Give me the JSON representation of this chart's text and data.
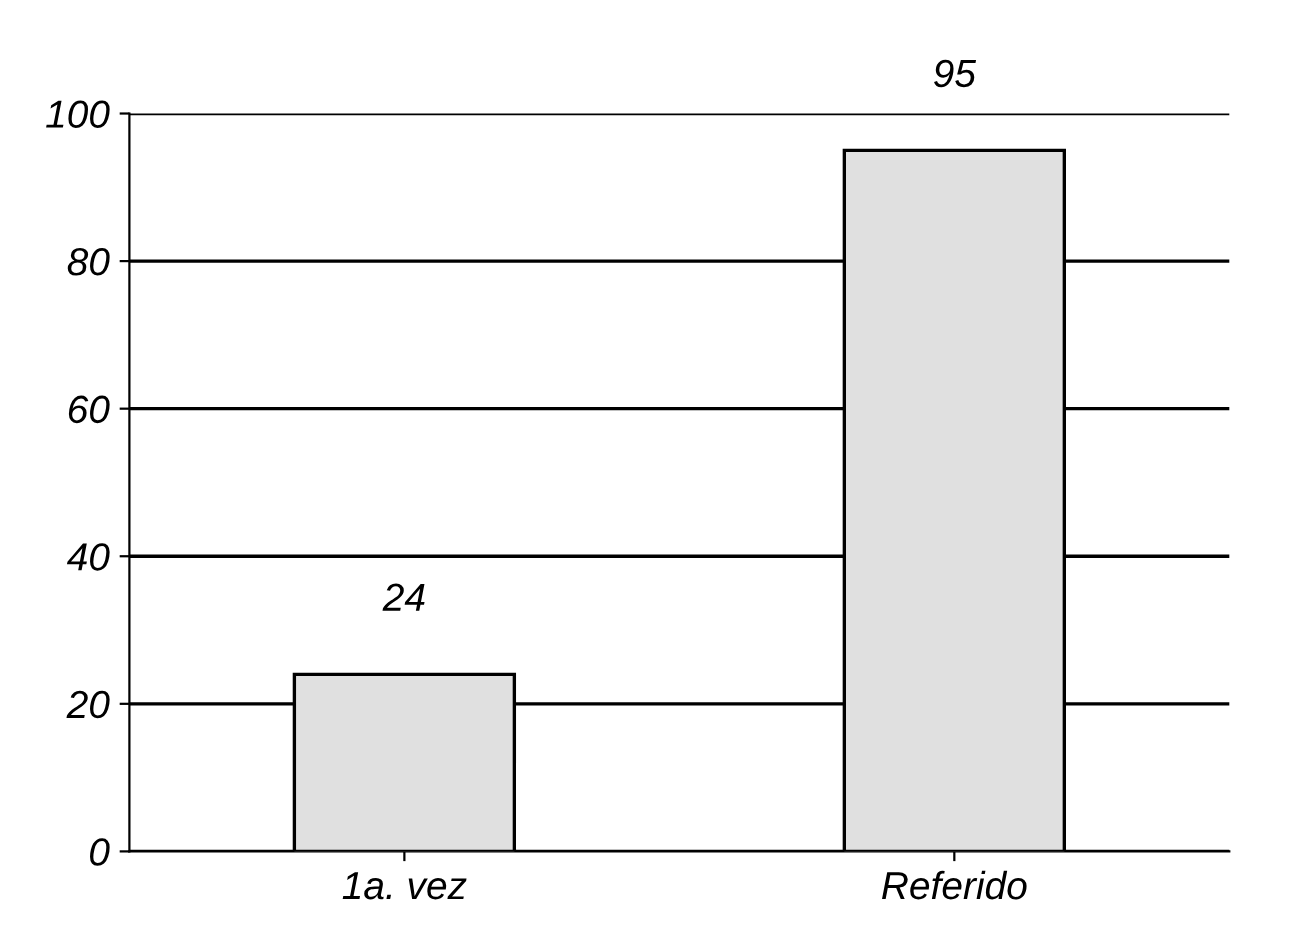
{
  "chart_data": {
    "type": "bar",
    "categories": [
      "1a. vez",
      "Referido"
    ],
    "values": [
      24,
      95
    ],
    "color": "#e0e0e0",
    "ylim": [
      0,
      100
    ],
    "yticks": [
      0,
      20,
      40,
      60,
      80,
      100
    ],
    "grid": "y",
    "data_labels": true
  }
}
